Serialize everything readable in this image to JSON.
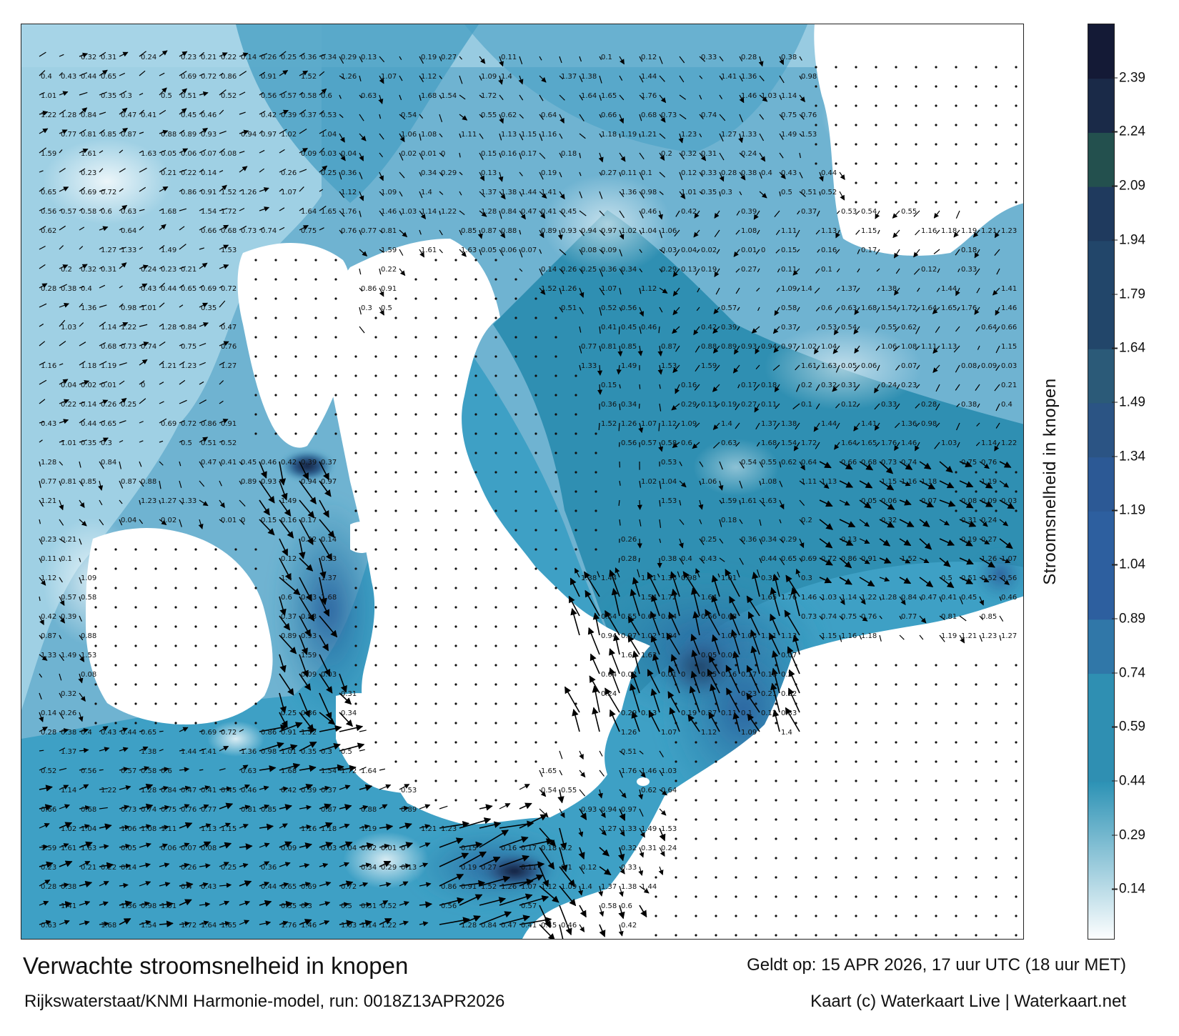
{
  "title": "Verwachte stroomsnelheid in knopen",
  "valid_time": "Geldt op: 15 APR 2026, 17 uur UTC (18 uur MET)",
  "model_run": "Rijkswaterstaat/KNMI Harmonie-model, run: 0018Z13APR2026",
  "credit": "Kaart (c) Waterkaart Live | Waterkaart.net",
  "colorbar": {
    "label": "Stroomsnelheid in knopen",
    "ticks": [
      "2.39",
      "2.24",
      "2.09",
      "1.94",
      "1.79",
      "1.64",
      "1.49",
      "1.34",
      "1.19",
      "1.04",
      "0.89",
      "0.74",
      "0.59",
      "0.44",
      "0.29",
      "0.14"
    ],
    "min": 0,
    "max": 2.54,
    "bands": [
      {
        "from": 0.0,
        "to": 0.44,
        "gradient": [
          "#ffffff",
          "#2c92b5"
        ]
      },
      {
        "from": 0.44,
        "to": 0.74,
        "color": "#2f8fb2"
      },
      {
        "from": 0.74,
        "to": 0.89,
        "color": "#3077a8"
      },
      {
        "from": 0.89,
        "to": 1.19,
        "color": "#2d5f9f"
      },
      {
        "from": 1.19,
        "to": 1.34,
        "color": "#2c5995"
      },
      {
        "from": 1.34,
        "to": 1.49,
        "color": "#2b5484"
      },
      {
        "from": 1.49,
        "to": 1.64,
        "color": "#2b5a78"
      },
      {
        "from": 1.64,
        "to": 1.94,
        "color": "#22466a"
      },
      {
        "from": 1.94,
        "to": 2.09,
        "color": "#1f3a5e"
      },
      {
        "from": 2.09,
        "to": 2.24,
        "color": "#23504e"
      },
      {
        "from": 2.24,
        "to": 2.39,
        "color": "#1a2a48"
      },
      {
        "from": 2.39,
        "to": 2.54,
        "color": "#141a36"
      }
    ]
  },
  "speed_labels": [
    {
      "v": "0.32"
    },
    {
      "v": "0.31"
    },
    {
      "v": "0.24"
    },
    {
      "v": "0.23"
    },
    {
      "v": "0.21"
    },
    {
      "v": "0.22"
    },
    {
      "v": "0.14"
    },
    {
      "v": "0.26"
    },
    {
      "v": "0.25"
    },
    {
      "v": "0.36"
    },
    {
      "v": "0.34"
    },
    {
      "v": "0.29"
    },
    {
      "v": "0.13"
    },
    {
      "v": "0.19"
    },
    {
      "v": "0.27"
    },
    {
      "v": "0.11"
    },
    {
      "v": "0.1"
    },
    {
      "v": "0.12"
    },
    {
      "v": "0.33"
    },
    {
      "v": "0.28"
    },
    {
      "v": "0.38"
    },
    {
      "v": "0.4"
    },
    {
      "v": "0.43"
    },
    {
      "v": "0.44"
    },
    {
      "v": "0.65"
    },
    {
      "v": "0.69"
    },
    {
      "v": "0.72"
    },
    {
      "v": "0.86"
    },
    {
      "v": "0.91"
    },
    {
      "v": "1.52"
    },
    {
      "v": "1.26"
    },
    {
      "v": "1.07"
    },
    {
      "v": "1.12"
    },
    {
      "v": "1.09"
    },
    {
      "v": "1.4"
    },
    {
      "v": "1.37"
    },
    {
      "v": "1.38"
    },
    {
      "v": "1.44"
    },
    {
      "v": "1.41"
    },
    {
      "v": "1.36"
    },
    {
      "v": "0.98"
    },
    {
      "v": "1.01"
    },
    {
      "v": "0.35"
    },
    {
      "v": "0.3"
    },
    {
      "v": "0.5"
    },
    {
      "v": "0.51"
    },
    {
      "v": "0.52"
    },
    {
      "v": "0.56"
    },
    {
      "v": "0.57"
    },
    {
      "v": "0.58"
    },
    {
      "v": "0.6"
    },
    {
      "v": "0.63"
    },
    {
      "v": "1.68"
    },
    {
      "v": "1.54"
    },
    {
      "v": "1.72"
    },
    {
      "v": "1.64"
    },
    {
      "v": "1.65"
    },
    {
      "v": "1.76"
    },
    {
      "v": "1.46"
    },
    {
      "v": "1.03"
    },
    {
      "v": "1.14"
    },
    {
      "v": "1.22"
    },
    {
      "v": "1.28"
    },
    {
      "v": "0.84"
    },
    {
      "v": "0.47"
    },
    {
      "v": "0.41"
    },
    {
      "v": "0.45"
    },
    {
      "v": "0.46"
    },
    {
      "v": "0.42"
    },
    {
      "v": "0.39"
    },
    {
      "v": "0.37"
    },
    {
      "v": "0.53"
    },
    {
      "v": "0.54"
    },
    {
      "v": "0.55"
    },
    {
      "v": "0.62"
    },
    {
      "v": "0.64"
    },
    {
      "v": "0.66"
    },
    {
      "v": "0.68"
    },
    {
      "v": "0.73"
    },
    {
      "v": "0.74"
    },
    {
      "v": "0.75"
    },
    {
      "v": "0.76"
    },
    {
      "v": "0.77"
    },
    {
      "v": "0.81"
    },
    {
      "v": "0.85"
    },
    {
      "v": "0.87"
    },
    {
      "v": "0.88"
    },
    {
      "v": "0.89"
    },
    {
      "v": "0.93"
    },
    {
      "v": "0.94"
    },
    {
      "v": "0.97"
    },
    {
      "v": "1.02"
    },
    {
      "v": "1.04"
    },
    {
      "v": "1.06"
    },
    {
      "v": "1.08"
    },
    {
      "v": "1.11"
    },
    {
      "v": "1.13"
    },
    {
      "v": "1.15"
    },
    {
      "v": "1.16"
    },
    {
      "v": "1.18"
    },
    {
      "v": "1.19"
    },
    {
      "v": "1.21"
    },
    {
      "v": "1.23"
    },
    {
      "v": "1.27"
    },
    {
      "v": "1.33"
    },
    {
      "v": "1.49"
    },
    {
      "v": "1.53"
    },
    {
      "v": "1.59"
    },
    {
      "v": "1.61"
    },
    {
      "v": "1.63"
    },
    {
      "v": "0.05"
    },
    {
      "v": "0.06"
    },
    {
      "v": "0.07"
    },
    {
      "v": "0.08"
    },
    {
      "v": "0.09"
    },
    {
      "v": "0.03"
    },
    {
      "v": "0.04"
    },
    {
      "v": "0.02"
    },
    {
      "v": "0.01"
    },
    {
      "v": "0"
    },
    {
      "v": "0.15"
    },
    {
      "v": "0.16"
    },
    {
      "v": "0.17"
    },
    {
      "v": "0.18"
    },
    {
      "v": "0.2"
    }
  ]
}
